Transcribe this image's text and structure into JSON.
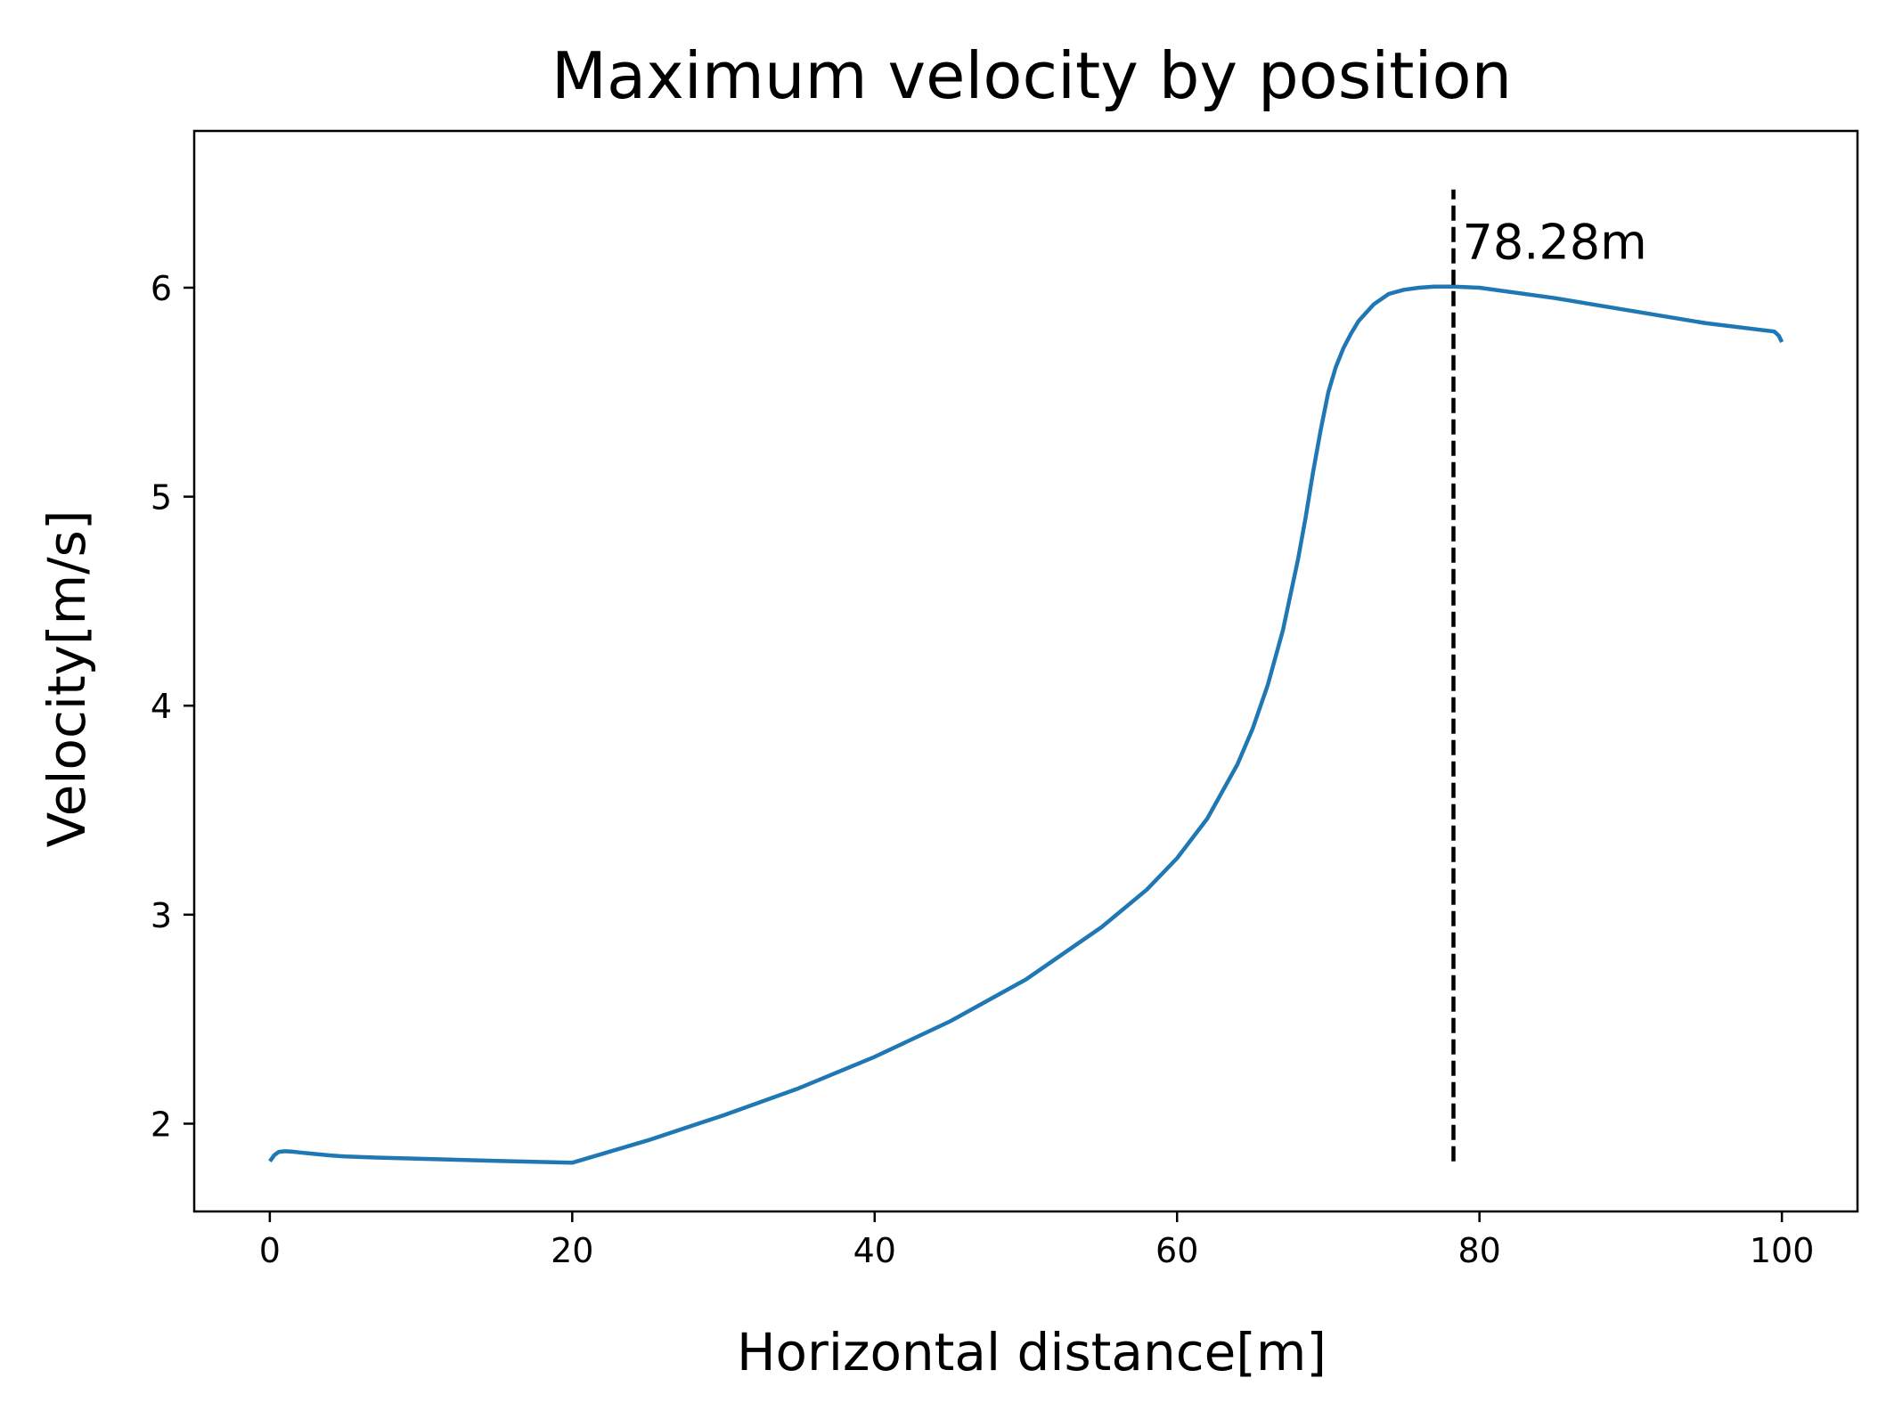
{
  "chart_data": {
    "type": "line",
    "title": "Maximum velocity by position",
    "xlabel": "Horizontal distance[m]",
    "ylabel": "Velocity[m/s]",
    "xlim": [
      -5,
      105
    ],
    "ylim": [
      1.58,
      6.75
    ],
    "xticks": [
      0,
      20,
      40,
      60,
      80,
      100
    ],
    "yticks": [
      2,
      3,
      4,
      5,
      6
    ],
    "xtick_labels": [
      "0",
      "20",
      "40",
      "60",
      "80",
      "100"
    ],
    "ytick_labels": [
      "2",
      "3",
      "4",
      "5",
      "6"
    ],
    "grid": false,
    "series": [
      {
        "color": "#1f77b4",
        "x": [
          0,
          0.3,
          0.6,
          1,
          1.5,
          2,
          3,
          4,
          5,
          7,
          10,
          15,
          20,
          25,
          30,
          35,
          40,
          45,
          50,
          55,
          58,
          60,
          62,
          64,
          65,
          66,
          67,
          68,
          68.5,
          69,
          69.5,
          70,
          70.5,
          71,
          71.5,
          72,
          73,
          74,
          75,
          76,
          77,
          78.28,
          80,
          85,
          90,
          95,
          99.5,
          99.8,
          100
        ],
        "y": [
          1.82,
          1.85,
          1.865,
          1.868,
          1.866,
          1.862,
          1.855,
          1.848,
          1.843,
          1.838,
          1.832,
          1.822,
          1.813,
          1.92,
          2.04,
          2.17,
          2.32,
          2.49,
          2.69,
          2.94,
          3.12,
          3.27,
          3.46,
          3.72,
          3.89,
          4.1,
          4.36,
          4.7,
          4.9,
          5.12,
          5.32,
          5.5,
          5.62,
          5.71,
          5.78,
          5.84,
          5.92,
          5.97,
          5.99,
          6.0,
          6.005,
          6.005,
          6.0,
          5.95,
          5.89,
          5.83,
          5.79,
          5.77,
          5.74
        ]
      }
    ],
    "annotations": [
      {
        "type": "vline",
        "x": 78.28,
        "y_range": [
          1.82,
          6.47
        ],
        "style": "dashed",
        "color": "#000000",
        "label": "78.28m",
        "label_y": 6.22
      }
    ]
  }
}
